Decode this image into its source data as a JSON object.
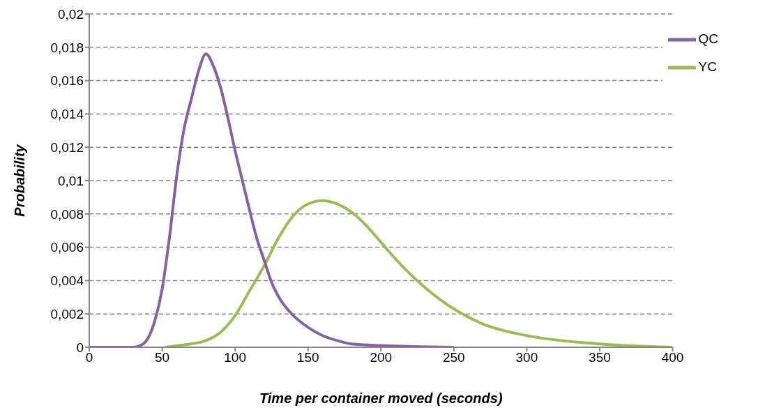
{
  "chart_data": {
    "type": "line",
    "xlabel": "Time per container moved (seconds)",
    "ylabel": "Probability",
    "xlim": [
      0,
      400
    ],
    "xticks": [
      0,
      50,
      100,
      150,
      200,
      250,
      300,
      350,
      400
    ],
    "ylim": [
      0,
      0.02
    ],
    "yticks": [
      {
        "value": 0,
        "label": "0"
      },
      {
        "value": 0.002,
        "label": "0,002"
      },
      {
        "value": 0.004,
        "label": "0,004"
      },
      {
        "value": 0.006,
        "label": "0,006"
      },
      {
        "value": 0.008,
        "label": "0,008"
      },
      {
        "value": 0.01,
        "label": "0,01"
      },
      {
        "value": 0.012,
        "label": "0,012"
      },
      {
        "value": 0.014,
        "label": "0,014"
      },
      {
        "value": 0.016,
        "label": "0,016"
      },
      {
        "value": 0.018,
        "label": "0,018"
      },
      {
        "value": 0.02,
        "label": "0,02"
      }
    ],
    "grid": "y",
    "legend": "top right",
    "marker": "none",
    "line_style": "solid",
    "series": [
      {
        "name": "YC",
        "color": "#9bbb59",
        "x": [
          52,
          60,
          70,
          80,
          90,
          100,
          110,
          120,
          130,
          140,
          150,
          160,
          170,
          180,
          190,
          200,
          210,
          220,
          230,
          250,
          270,
          300,
          350,
          400
        ],
        "values": [
          0,
          0.0001,
          0.0002,
          0.0004,
          0.0009,
          0.0019,
          0.0034,
          0.0049,
          0.0066,
          0.0079,
          0.0086,
          0.0088,
          0.0086,
          0.0081,
          0.0073,
          0.0063,
          0.0053,
          0.0044,
          0.0036,
          0.0023,
          0.0014,
          0.0007,
          0.0002,
          0
        ]
      },
      {
        "name": "QC",
        "color": "#8064a2",
        "x": [
          0,
          30,
          35,
          40,
          45,
          50,
          55,
          60,
          65,
          70,
          75,
          80,
          85,
          90,
          95,
          100,
          105,
          110,
          115,
          120,
          125,
          130,
          140,
          150,
          160,
          170,
          180,
          200,
          250
        ],
        "values": [
          0,
          0,
          0.0001,
          0.0005,
          0.0016,
          0.0035,
          0.0066,
          0.0103,
          0.0131,
          0.0149,
          0.0166,
          0.0176,
          0.0169,
          0.0156,
          0.0138,
          0.0118,
          0.01,
          0.0082,
          0.0065,
          0.0052,
          0.0039,
          0.003,
          0.0019,
          0.0012,
          0.0007,
          0.0004,
          0.0002,
          0.0001,
          0
        ]
      }
    ]
  }
}
